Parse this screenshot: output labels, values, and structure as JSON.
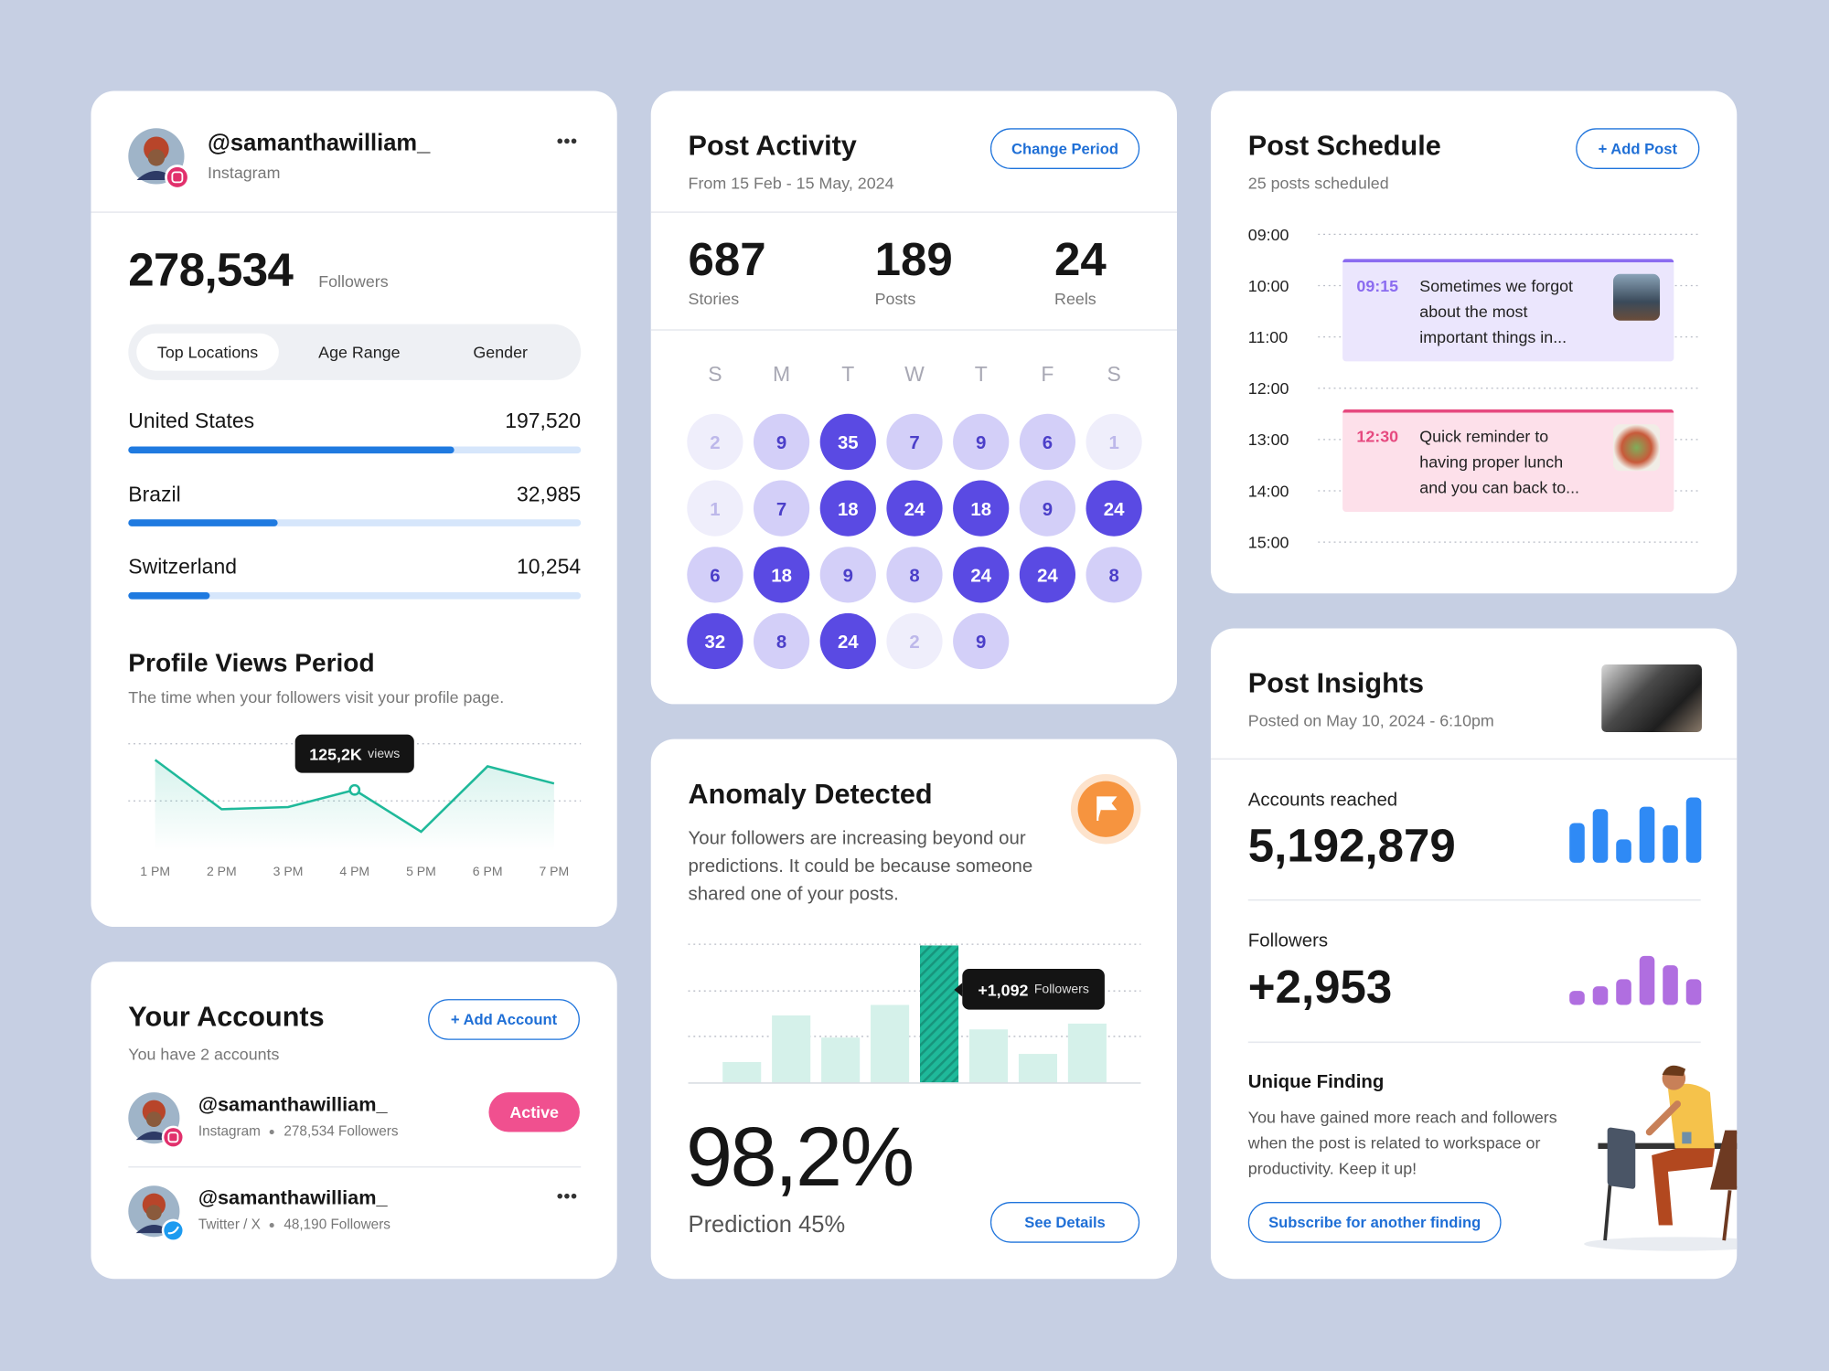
{
  "profile": {
    "handle": "@samanthawilliam_",
    "platform": "Instagram",
    "followers": "278,534",
    "followers_label": "Followers",
    "tabs": [
      "Top Locations",
      "Age Range",
      "Gender"
    ],
    "active_tab": 0,
    "locations": [
      {
        "name": "United States",
        "value": "197,520",
        "bar": 72
      },
      {
        "name": "Brazil",
        "value": "32,985",
        "bar": 33
      },
      {
        "name": "Switzerland",
        "value": "10,254",
        "bar": 18
      }
    ],
    "views_chart": {
      "type": "line",
      "title": "Profile Views Period",
      "subtitle": "The time when your followers visit your profile page.",
      "x": [
        "1 PM",
        "2 PM",
        "3 PM",
        "4 PM",
        "5 PM",
        "6 PM",
        "7 PM"
      ],
      "values": [
        85,
        39,
        41,
        57,
        18,
        79,
        63
      ],
      "ylim": [
        0,
        100
      ],
      "color": "#1fb99a",
      "tooltip": {
        "index": 3,
        "value": "125,2K",
        "unit": "views"
      }
    }
  },
  "accounts": {
    "title": "Your Accounts",
    "subtitle": "You have 2 accounts",
    "button": "+ Add Account",
    "items": [
      {
        "handle": "@samanthawilliam_",
        "platform": "Instagram",
        "followers": "278,534 Followers",
        "status": "Active"
      },
      {
        "handle": "@samanthawilliam_",
        "platform": "Twitter / X",
        "followers": "48,190 Followers"
      }
    ]
  },
  "activity": {
    "title": "Post Activity",
    "subtitle": "From 15 Feb - 15 May, 2024",
    "button": "Change Period",
    "stats": [
      {
        "value": 687,
        "label": "Stories"
      },
      {
        "value": 189,
        "label": "Posts"
      },
      {
        "value": 24,
        "label": "Reels"
      }
    ],
    "weekdays": [
      "S",
      "M",
      "T",
      "W",
      "T",
      "F",
      "S"
    ],
    "days": [
      2,
      9,
      35,
      7,
      9,
      6,
      1,
      1,
      7,
      18,
      24,
      18,
      9,
      24,
      6,
      18,
      9,
      8,
      24,
      24,
      8,
      32,
      8,
      24,
      2,
      9
    ]
  },
  "anomaly": {
    "title": "Anomaly Detected",
    "text": "Your followers are increasing beyond our predictions. It could be because someone shared one of your posts.",
    "chart": {
      "type": "bar",
      "values": [
        18,
        58,
        39,
        67,
        118,
        46,
        25,
        51
      ],
      "ylim": [
        0,
        120
      ],
      "highlight": 4,
      "color": "#d5f1ea",
      "highlight_color": "#1fb99a",
      "tooltip": {
        "value": "+1,092",
        "unit": "Followers"
      }
    },
    "rate": "98,2%",
    "prediction": "Prediction 45%",
    "button": "See Details"
  },
  "schedule": {
    "title": "Post Schedule",
    "subtitle": "25 posts scheduled",
    "button": "+ Add Post",
    "times": [
      "09:00",
      "10:00",
      "11:00",
      "12:00",
      "13:00",
      "14:00",
      "15:00"
    ],
    "events": [
      {
        "time": "09:15",
        "text": "Sometimes we forgot about the most important things in...",
        "color": "#8b6cf0",
        "background": "#ebe6fd"
      },
      {
        "time": "12:30",
        "text": "Quick reminder to having proper lunch and you can back to...",
        "color": "#e6497f",
        "background": "#fde0ea"
      }
    ]
  },
  "insights": {
    "title": "Post Insights",
    "subtitle": "Posted on May 10, 2024 - 6:10pm",
    "metrics": [
      {
        "label": "Accounts reached",
        "value": "5,192,879",
        "bars": [
          34,
          46,
          20,
          48,
          32,
          56
        ],
        "color": "#2f8af5"
      },
      {
        "label": "Followers",
        "value": "+2,953",
        "bars": [
          12,
          16,
          22,
          42,
          34,
          22
        ],
        "color": "#b06ee0"
      }
    ],
    "finding": {
      "title": "Unique Finding",
      "text": "You have gained more reach and followers when the post is related to workspace or productivity. Keep it up!",
      "button": "Subscribe for another finding"
    }
  }
}
